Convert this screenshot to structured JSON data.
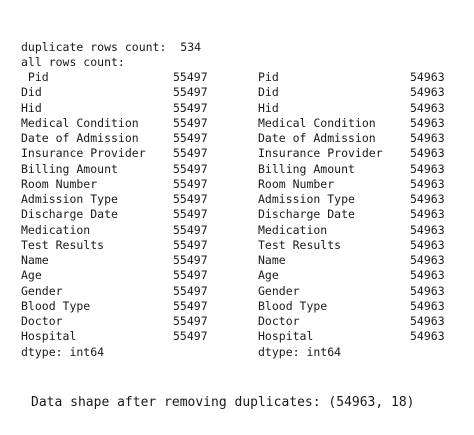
{
  "output": {
    "duplicate_label": "duplicate rows count:",
    "duplicate_value": "534",
    "all_rows_label": "all rows count:",
    "before": {
      "rows": [
        {
          "name": " Pid",
          "count": "55497"
        },
        {
          "name": "Did",
          "count": "55497"
        },
        {
          "name": "Hid",
          "count": "55497"
        },
        {
          "name": "Medical Condition",
          "count": "55497"
        },
        {
          "name": "Date of Admission",
          "count": "55497"
        },
        {
          "name": "Insurance Provider",
          "count": "55497"
        },
        {
          "name": "Billing Amount",
          "count": "55497"
        },
        {
          "name": "Room Number",
          "count": "55497"
        },
        {
          "name": "Admission Type",
          "count": "55497"
        },
        {
          "name": "Discharge Date",
          "count": "55497"
        },
        {
          "name": "Medication",
          "count": "55497"
        },
        {
          "name": "Test Results",
          "count": "55497"
        },
        {
          "name": "Name",
          "count": "55497"
        },
        {
          "name": "Age",
          "count": "55497"
        },
        {
          "name": "Gender",
          "count": "55497"
        },
        {
          "name": "Blood Type",
          "count": "55497"
        },
        {
          "name": "Doctor",
          "count": "55497"
        },
        {
          "name": "Hospital",
          "count": "55497"
        }
      ],
      "dtype": "dtype: int64"
    },
    "after": {
      "rows": [
        {
          "name": "Pid",
          "count": "54963"
        },
        {
          "name": "Did",
          "count": "54963"
        },
        {
          "name": "Hid",
          "count": "54963"
        },
        {
          "name": "Medical Condition",
          "count": "54963"
        },
        {
          "name": "Date of Admission",
          "count": "54963"
        },
        {
          "name": "Insurance Provider",
          "count": "54963"
        },
        {
          "name": "Billing Amount",
          "count": "54963"
        },
        {
          "name": "Room Number",
          "count": "54963"
        },
        {
          "name": "Admission Type",
          "count": "54963"
        },
        {
          "name": "Discharge Date",
          "count": "54963"
        },
        {
          "name": "Medication",
          "count": "54963"
        },
        {
          "name": "Test Results",
          "count": "54963"
        },
        {
          "name": "Name",
          "count": "54963"
        },
        {
          "name": "Age",
          "count": "54963"
        },
        {
          "name": "Gender",
          "count": "54963"
        },
        {
          "name": "Blood Type",
          "count": "54963"
        },
        {
          "name": "Doctor",
          "count": "54963"
        },
        {
          "name": "Hospital",
          "count": "54963"
        }
      ],
      "dtype": "dtype: int64"
    },
    "shape_text": "Data shape after removing duplicates: (54963, 18)"
  }
}
